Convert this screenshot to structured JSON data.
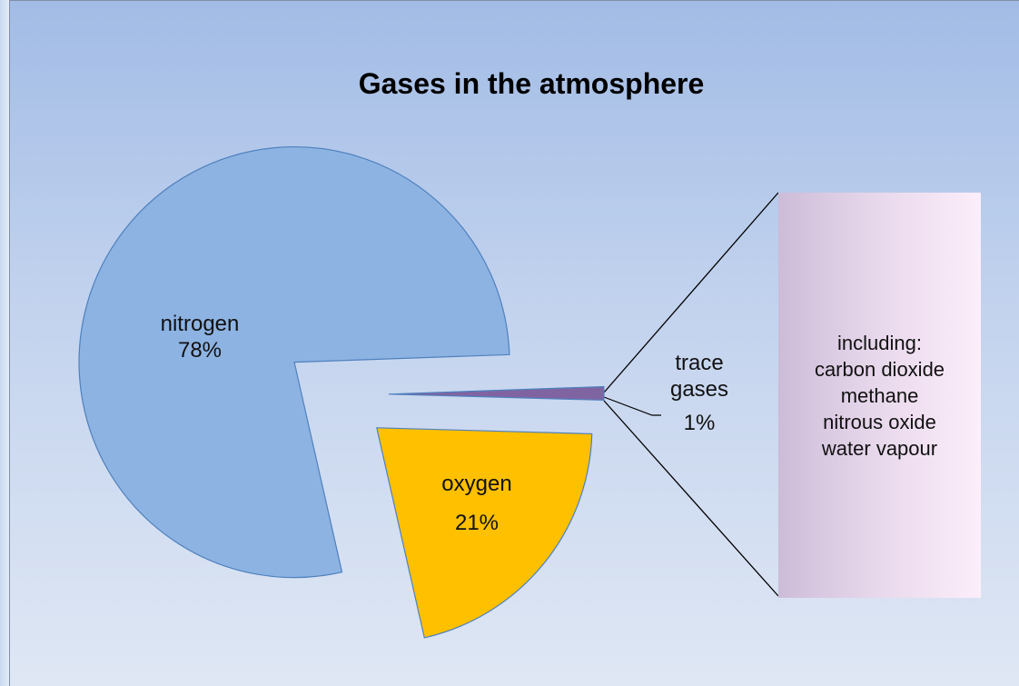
{
  "chart_data": {
    "type": "pie",
    "title": "Gases in the atmosphere",
    "categories": [
      "nitrogen",
      "trace gases",
      "oxygen"
    ],
    "values": [
      78,
      1,
      21
    ],
    "value_labels": [
      "78%",
      "1%",
      "21%"
    ],
    "colors": [
      "#8db3e2",
      "#8064a2",
      "#ffc000"
    ],
    "annotation": {
      "title": "including:",
      "items": [
        "carbon dioxide",
        "methane",
        "nitrous oxide",
        "water vapour"
      ]
    }
  }
}
